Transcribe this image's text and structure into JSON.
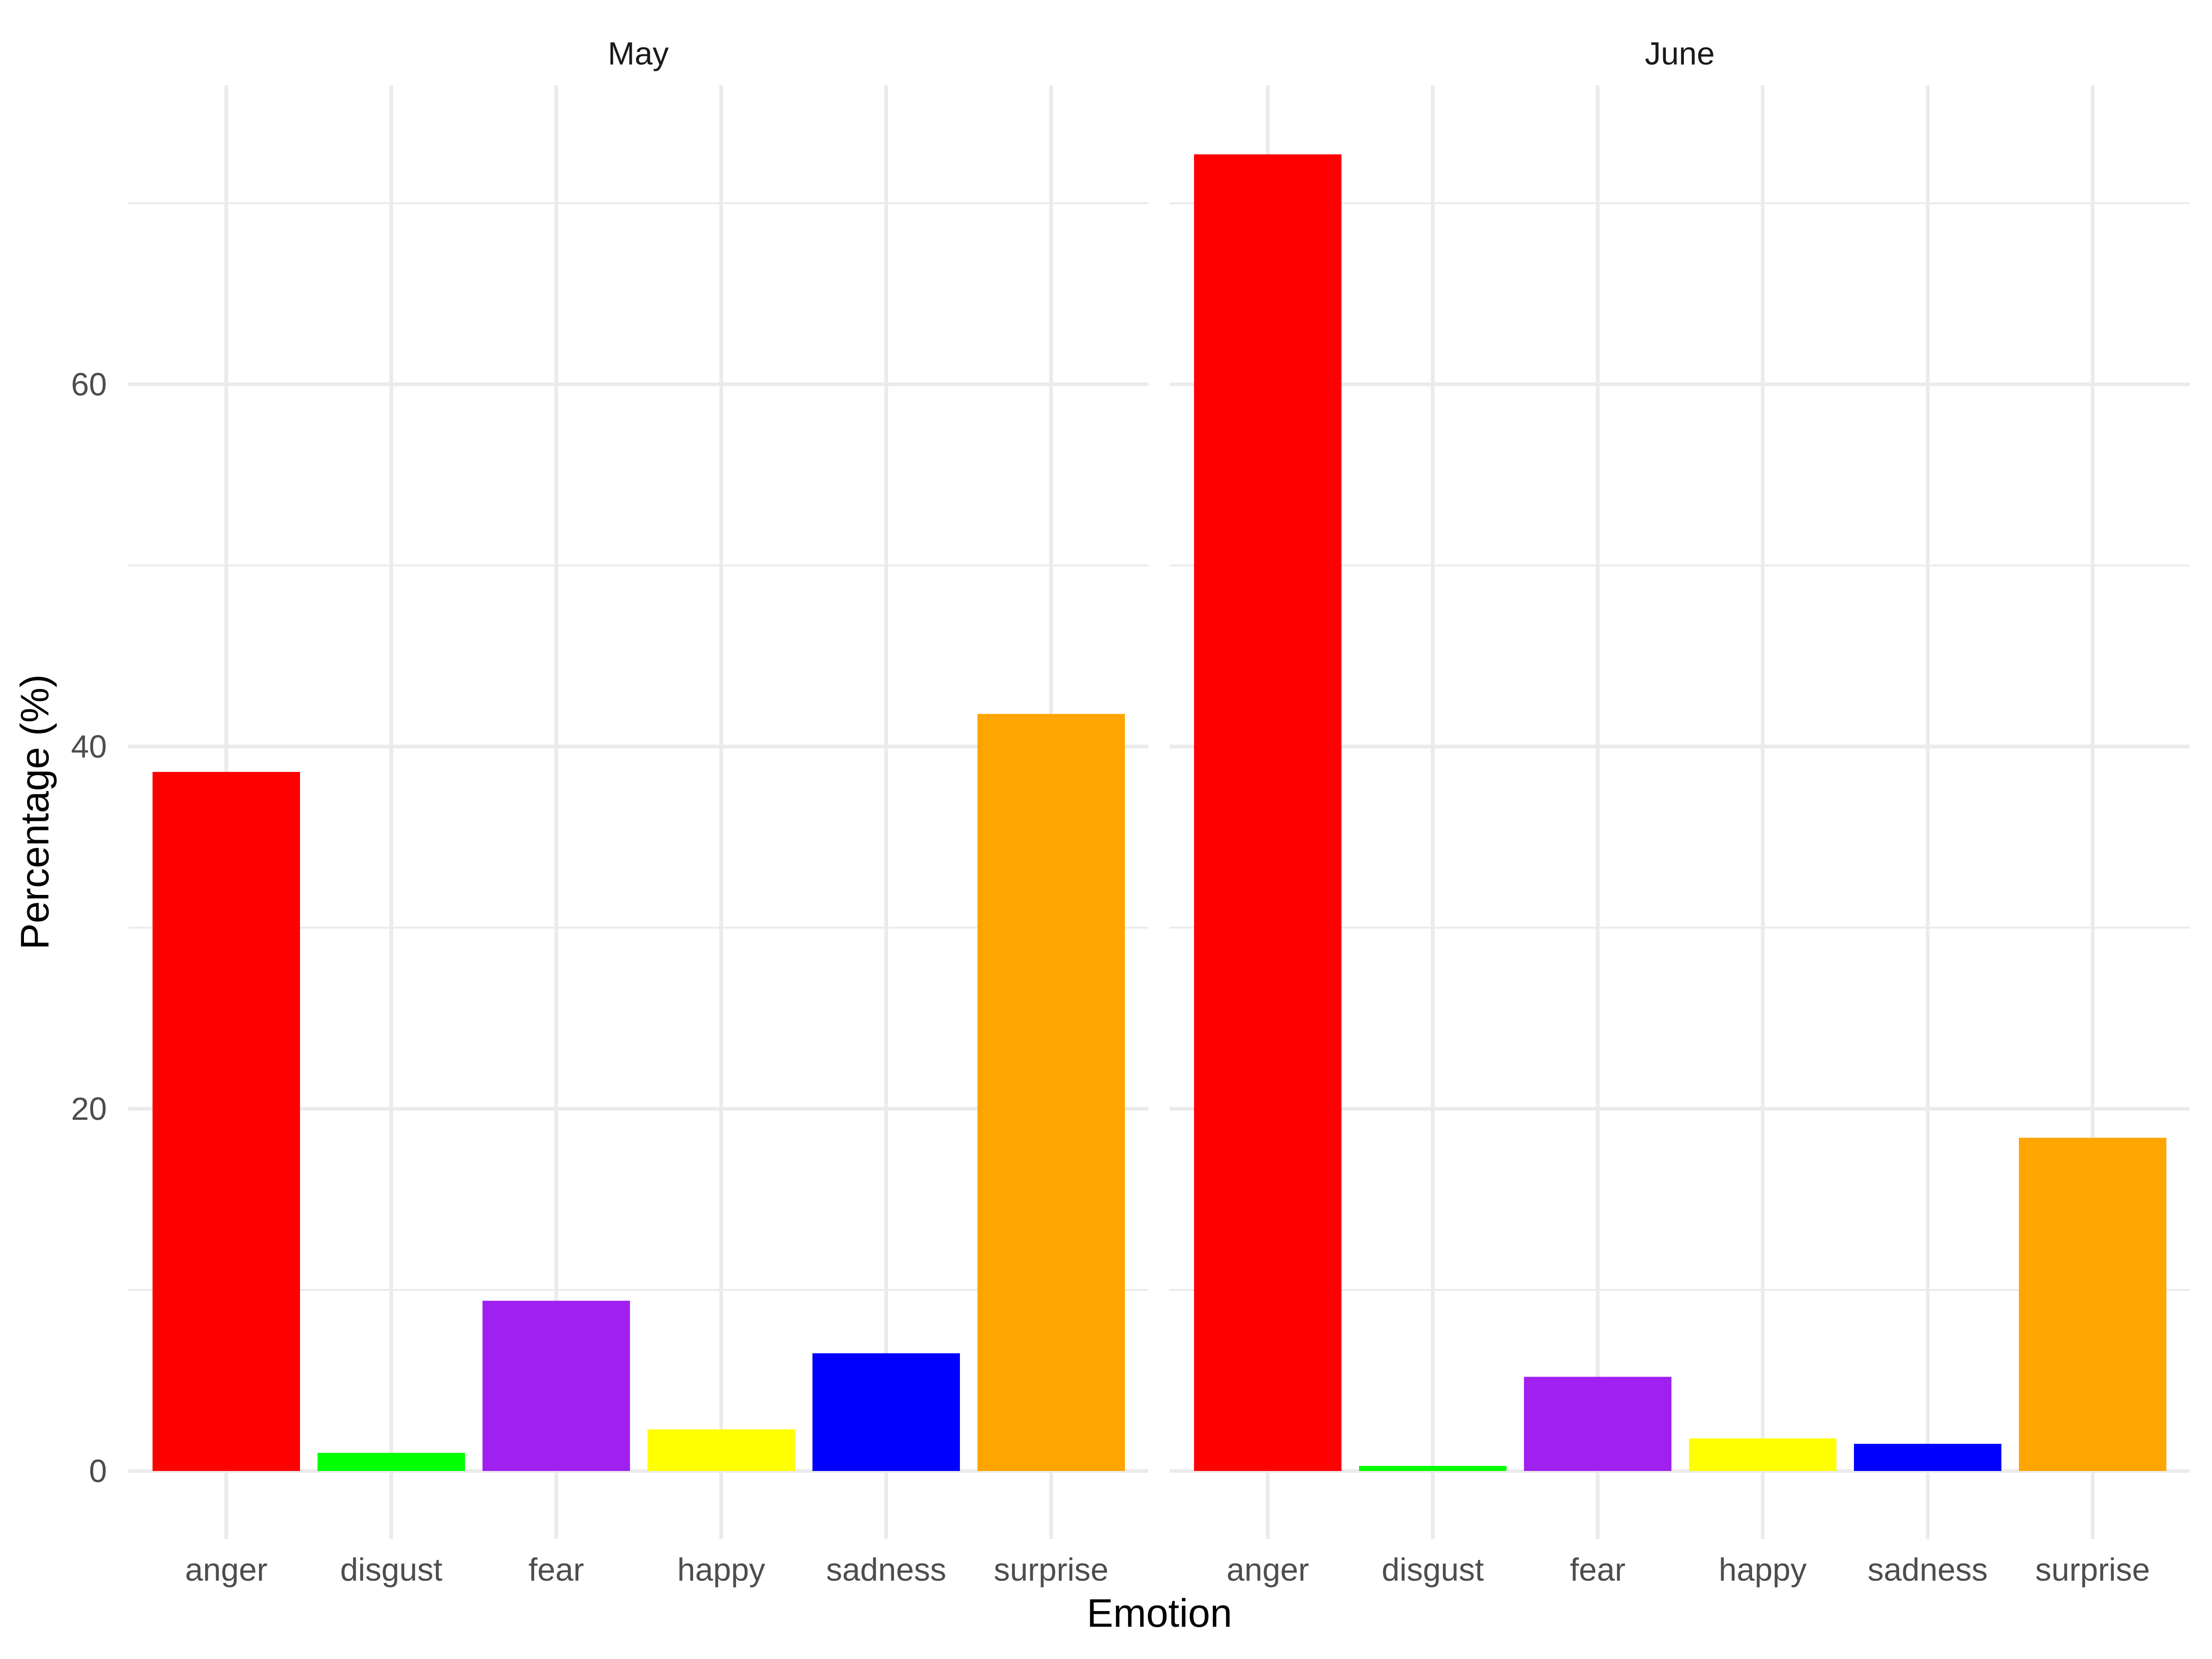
{
  "chart_data": {
    "type": "bar",
    "xlabel": "Emotion",
    "ylabel": "Percentage (%)",
    "ylim": [
      0,
      76
    ],
    "yticks": [
      0,
      20,
      40,
      60
    ],
    "grid": true,
    "categories": [
      "anger",
      "disgust",
      "fear",
      "happy",
      "sadness",
      "surprise"
    ],
    "colors": [
      "#FF0000",
      "#00FF00",
      "#A020F0",
      "#FFFF00",
      "#0000FF",
      "#FFA500"
    ],
    "panels": [
      {
        "title": "May",
        "values": [
          38.6,
          1.0,
          9.4,
          2.3,
          6.5,
          41.8
        ]
      },
      {
        "title": "June",
        "values": [
          72.7,
          0.28,
          5.2,
          1.8,
          1.5,
          18.4
        ]
      }
    ]
  }
}
